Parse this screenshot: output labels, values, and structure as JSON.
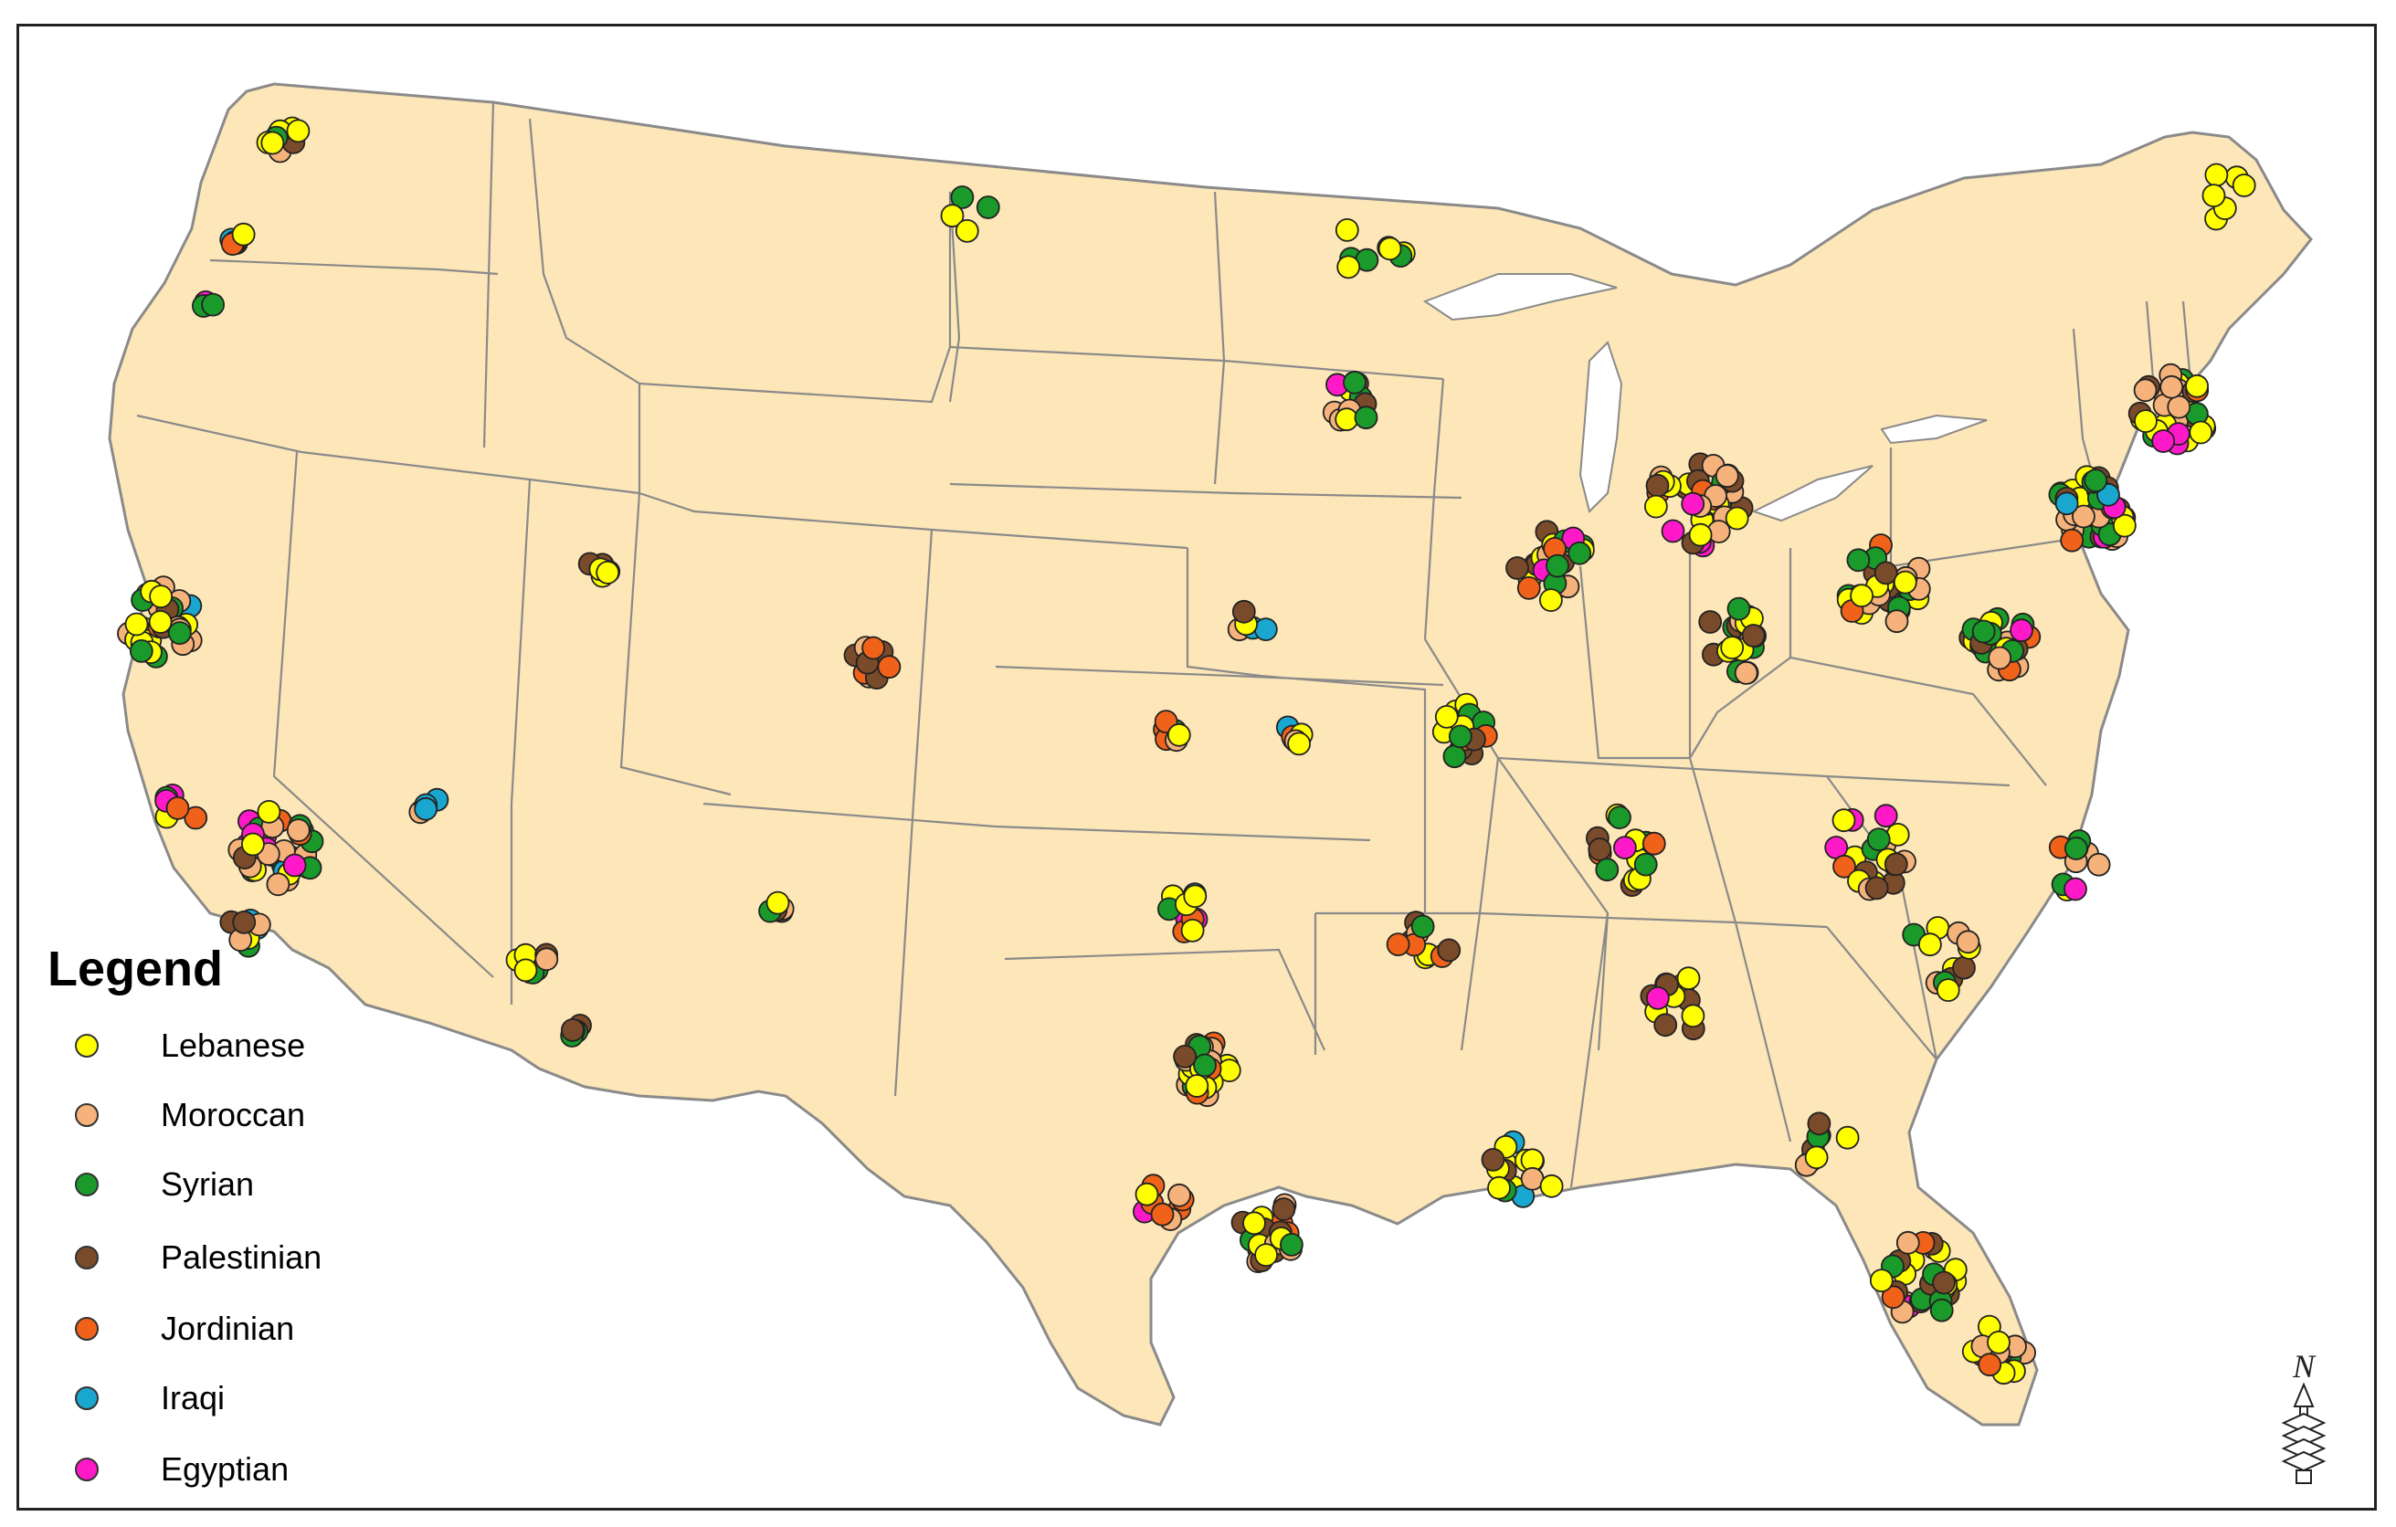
{
  "legend": {
    "title": "Legend",
    "items": [
      {
        "label": "Lebanese",
        "color": "#ffff00"
      },
      {
        "label": "Moroccan",
        "color": "#f5b27a"
      },
      {
        "label": "Syrian",
        "color": "#1a9a2a"
      },
      {
        "label": "Palestinian",
        "color": "#7a4b2a"
      },
      {
        "label": "Jordinian",
        "color": "#f0621a"
      },
      {
        "label": "Iraqi",
        "color": "#1aa7cf"
      },
      {
        "label": "Egyptian",
        "color": "#ff19c8"
      }
    ]
  },
  "north_arrow": {
    "label": "N"
  },
  "colors": {
    "land": "#fde6b8",
    "border": "#8a8a8a",
    "frame": "#222222"
  }
}
